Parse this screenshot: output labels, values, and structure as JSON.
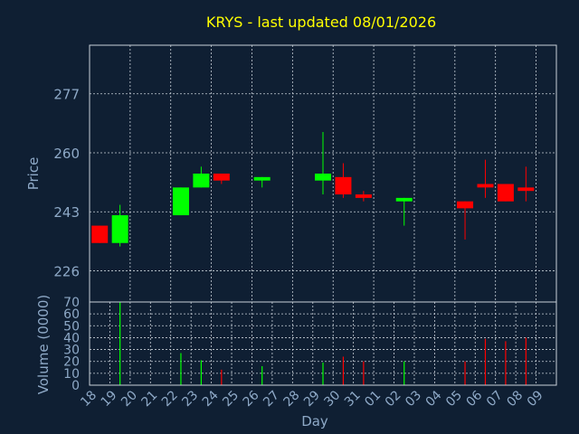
{
  "chart_data": {
    "type": "candlestick",
    "title": "KRYS - last updated 08/01/2026",
    "xlabel": "Day",
    "ylabel": "Price",
    "volume_label": "Volume (0000)",
    "ylim": [
      217,
      291
    ],
    "y_ticks": [
      226,
      243,
      260,
      277
    ],
    "volume_ylim": [
      0,
      70
    ],
    "volume_ticks": [
      0,
      10,
      20,
      30,
      40,
      50,
      60,
      70
    ],
    "x_ticks": [
      "18",
      "19",
      "20",
      "21",
      "22",
      "23",
      "24",
      "25",
      "26",
      "27",
      "28",
      "29",
      "30",
      "31",
      "01",
      "02",
      "03",
      "04",
      "05",
      "06",
      "07",
      "08",
      "09"
    ],
    "up_color": "#00ff00",
    "down_color": "#ff0000",
    "grid": true,
    "candles": [
      {
        "day": "18",
        "open": 239,
        "high": 239,
        "low": 234,
        "close": 234
      },
      {
        "day": "19",
        "open": 234,
        "high": 245,
        "low": 233,
        "close": 242
      },
      {
        "day": "22",
        "open": 242,
        "high": 250,
        "low": 242,
        "close": 250
      },
      {
        "day": "23",
        "open": 250,
        "high": 256,
        "low": 250,
        "close": 254
      },
      {
        "day": "24",
        "open": 254,
        "high": 254,
        "low": 251,
        "close": 252
      },
      {
        "day": "26",
        "open": 252,
        "high": 253,
        "low": 250,
        "close": 253
      },
      {
        "day": "29",
        "open": 252,
        "high": 266,
        "low": 248,
        "close": 254
      },
      {
        "day": "30",
        "open": 253,
        "high": 257,
        "low": 247,
        "close": 248
      },
      {
        "day": "31",
        "open": 248,
        "high": 249,
        "low": 246,
        "close": 247
      },
      {
        "day": "02",
        "open": 246,
        "high": 247,
        "low": 239,
        "close": 247
      },
      {
        "day": "05",
        "open": 246,
        "high": 246,
        "low": 235,
        "close": 244
      },
      {
        "day": "06",
        "open": 251,
        "high": 258,
        "low": 247,
        "close": 250
      },
      {
        "day": "07",
        "open": 251,
        "high": 251,
        "low": 246,
        "close": 246
      },
      {
        "day": "08",
        "open": 250,
        "high": 256,
        "low": 246,
        "close": 249
      }
    ],
    "volumes": [
      {
        "day": "19",
        "value": 70
      },
      {
        "day": "22",
        "value": 27
      },
      {
        "day": "23",
        "value": 21
      },
      {
        "day": "24",
        "value": 13
      },
      {
        "day": "26",
        "value": 16
      },
      {
        "day": "29",
        "value": 19
      },
      {
        "day": "30",
        "value": 24
      },
      {
        "day": "31",
        "value": 20
      },
      {
        "day": "02",
        "value": 20
      },
      {
        "day": "05",
        "value": 20
      },
      {
        "day": "06",
        "value": 39
      },
      {
        "day": "07",
        "value": 37
      },
      {
        "day": "08",
        "value": 40
      }
    ]
  }
}
